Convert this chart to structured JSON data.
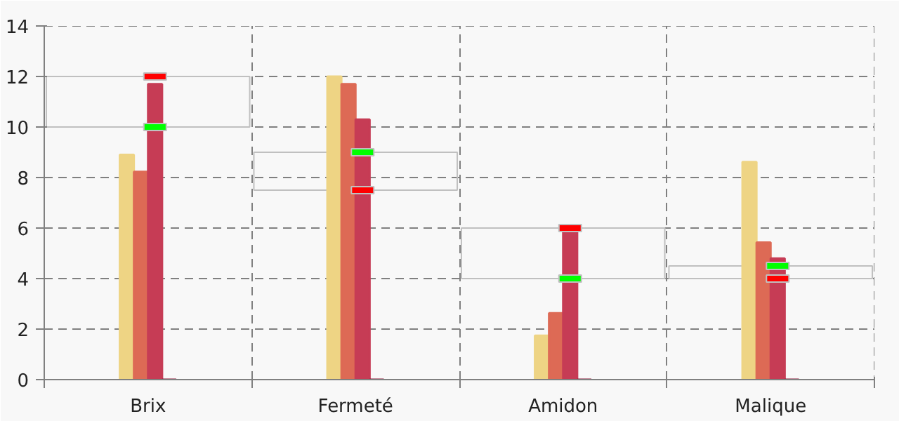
{
  "chart_data": {
    "type": "bar",
    "categories": [
      "Brix",
      "Fermeté",
      "Amidon",
      "Malique"
    ],
    "series": [
      {
        "color": "#eed484",
        "values": [
          8.9,
          12.0,
          1.74,
          8.62
        ]
      },
      {
        "color": "#dd6a55",
        "values": [
          8.23,
          11.7,
          2.63,
          5.43
        ]
      },
      {
        "color": "#c63c55",
        "values": [
          11.7,
          10.3,
          5.93,
          4.8
        ]
      },
      {
        "color": "#8b1c3c",
        "values": [
          0,
          0,
          0,
          0
        ]
      },
      {
        "type": "bar",
        "color": "#c0c0c0",
        "base": [
          10,
          7.5,
          4,
          4
        ],
        "values": [
          2,
          1.5,
          2,
          0.5
        ]
      },
      {
        "type": "scatter",
        "marker": "square",
        "color": "#00ff00",
        "x": [
          "Brix",
          "Fermeté",
          "Amidon",
          "Malique"
        ],
        "values": [
          10,
          9,
          4,
          4.5
        ]
      },
      {
        "type": "scatter",
        "marker": "square",
        "color": "#ff0000",
        "x": [
          "Brix",
          "Fermeté",
          "Amidon",
          "Malique"
        ],
        "values": [
          12,
          7.5,
          6,
          4
        ]
      }
    ],
    "ylim": [
      0,
      14
    ],
    "yticks": [
      0,
      2,
      4,
      6,
      8,
      10,
      12,
      14
    ],
    "grid": true
  }
}
